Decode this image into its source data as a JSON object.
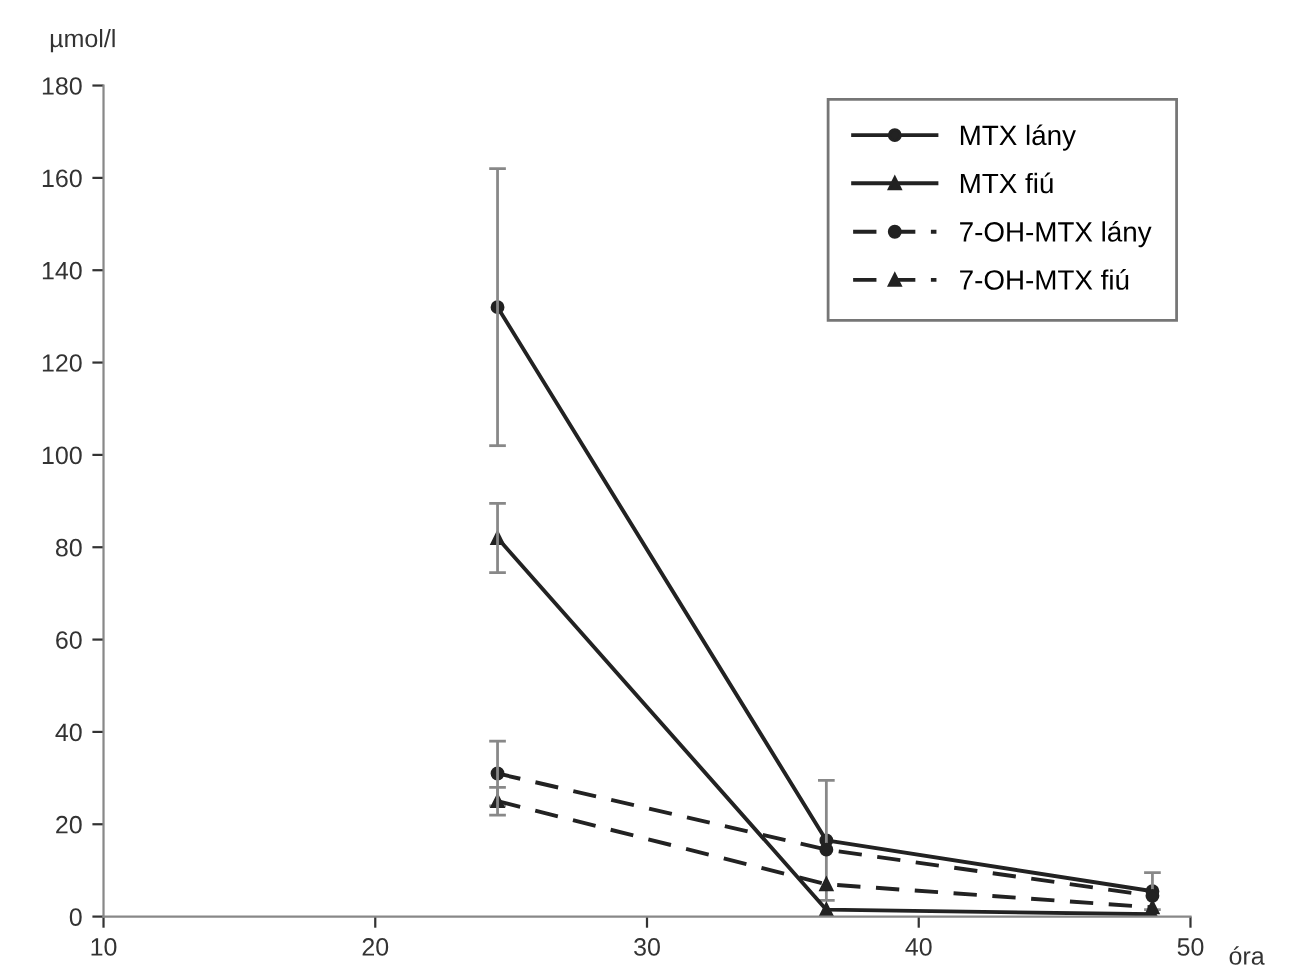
{
  "chart_data": {
    "type": "line",
    "xlabel": "óra",
    "ylabel": "µmol/l",
    "xlim": [
      10,
      50
    ],
    "xticks": [
      10,
      20,
      30,
      40,
      50
    ],
    "ylim": [
      0,
      180
    ],
    "yticks": [
      0,
      20,
      40,
      60,
      80,
      100,
      120,
      140,
      160,
      180
    ],
    "grid": false,
    "legend": "top right",
    "series": [
      {
        "name": "MTX lány",
        "color": "#222222",
        "x": [
          24.5,
          36.6,
          48.6
        ],
        "values": [
          132,
          16.5,
          5.5
        ],
        "errors": [
          30,
          13,
          4
        ],
        "marker": "circle",
        "line_style": "solid"
      },
      {
        "name": "MTX fiú",
        "color": "#222222",
        "x": [
          24.5,
          36.6,
          48.6
        ],
        "values": [
          82,
          1.5,
          0.5
        ],
        "errors": [
          7.5,
          null,
          null
        ],
        "marker": "triangle",
        "line_style": "solid"
      },
      {
        "name": "7-OH-MTX lány",
        "color": "#222222",
        "x": [
          24.5,
          36.6,
          48.6
        ],
        "values": [
          31,
          14.5,
          4.5
        ],
        "errors": [
          7,
          null,
          null
        ],
        "marker": "circle",
        "line_style": "dashed"
      },
      {
        "name": "7-OH-MTX fiú",
        "color": "#222222",
        "x": [
          24.5,
          36.6,
          48.6
        ],
        "values": [
          25,
          7,
          2
        ],
        "errors": [
          3,
          null,
          null
        ],
        "marker": "triangle",
        "line_style": "dashed"
      }
    ]
  }
}
